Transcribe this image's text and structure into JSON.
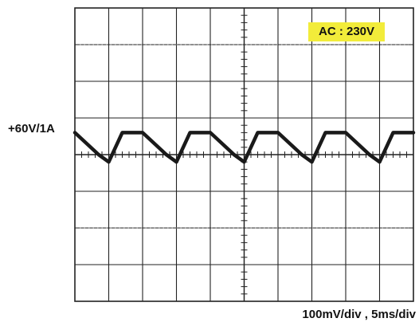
{
  "chart_data": {
    "type": "line",
    "title": "",
    "grid": true,
    "divisions": {
      "x": 10,
      "y": 8
    },
    "minor_ticks_per_division": 5,
    "badge_text": "AC : 230V",
    "ref_label": "+60V/1A",
    "scale_label": "100mV/div  ,  5ms/div",
    "xlim": [
      0,
      50
    ],
    "ylim": [
      -400,
      400
    ],
    "x_unit": "ms",
    "y_unit": "mV",
    "series": [
      {
        "x": [
          0,
          3.5,
          5,
          7,
          10,
          13.5,
          15,
          17,
          20,
          23.5,
          25,
          27,
          30,
          33.5,
          35,
          37,
          40,
          43.5,
          45,
          47,
          50
        ],
        "y": [
          60,
          0,
          -20,
          60,
          60,
          0,
          -20,
          60,
          60,
          0,
          -20,
          60,
          60,
          0,
          -20,
          60,
          60,
          0,
          -20,
          60,
          60
        ]
      }
    ],
    "colors": {
      "trace": "#1a1a1a",
      "grid": "#222222",
      "badge": "#f2ec3a"
    }
  }
}
